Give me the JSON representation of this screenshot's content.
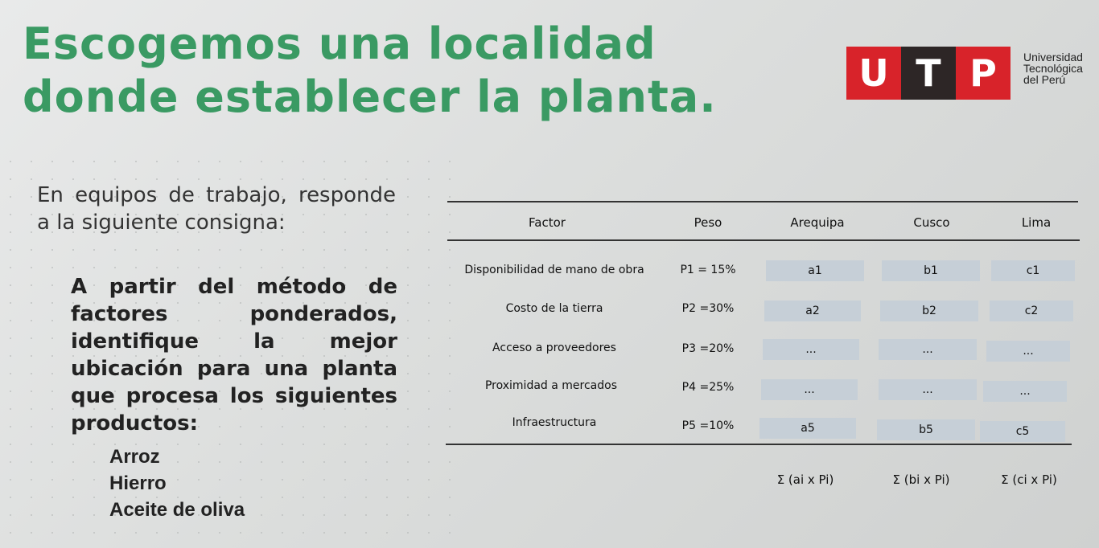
{
  "title": {
    "line1": "Escogemos una localidad",
    "line2": "donde establecer la planta."
  },
  "logo": {
    "letters": [
      "U",
      "T",
      "P"
    ],
    "text": [
      "Universidad",
      "Tecnológica",
      "del Perú"
    ],
    "colors": {
      "red": "#d8232a",
      "dark": "#2d2626"
    }
  },
  "intro": "En equipos de trabajo, responde a la siguiente consigna:",
  "instruction": "A partir del método de factores ponderados, identifique la mejor ubicación para una planta que procesa los siguientes productos:",
  "products": [
    "Arroz",
    "Hierro",
    "Aceite de oliva"
  ],
  "table": {
    "headers": {
      "factor": "Factor",
      "peso": "Peso",
      "c1": "Arequipa",
      "c2": "Cusco",
      "c3": "Lima"
    },
    "rows": [
      {
        "factor": "Disponibilidad de mano de obra",
        "peso": "P1 = 15%",
        "a": "a1",
        "b": "b1",
        "c": "c1"
      },
      {
        "factor": "Costo de la tierra",
        "peso": "P2 =30%",
        "a": "a2",
        "b": "b2",
        "c": "c2"
      },
      {
        "factor": "Acceso a proveedores",
        "peso": "P3 =20%",
        "a": "...",
        "b": "...",
        "c": "..."
      },
      {
        "factor": "Proximidad a mercados",
        "peso": "P4 =25%",
        "a": "...",
        "b": "...",
        "c": "..."
      },
      {
        "factor": "Infraestructura",
        "peso": "P5 =10%",
        "a": "a5",
        "b": "b5",
        "c": "c5"
      }
    ],
    "sums": [
      "Σ (ai x Pi)",
      "Σ (bi x Pi)",
      "Σ (ci x Pi)"
    ]
  },
  "colors": {
    "title_green": "#3a9a63",
    "cell_fill": "#c6cfd7"
  }
}
